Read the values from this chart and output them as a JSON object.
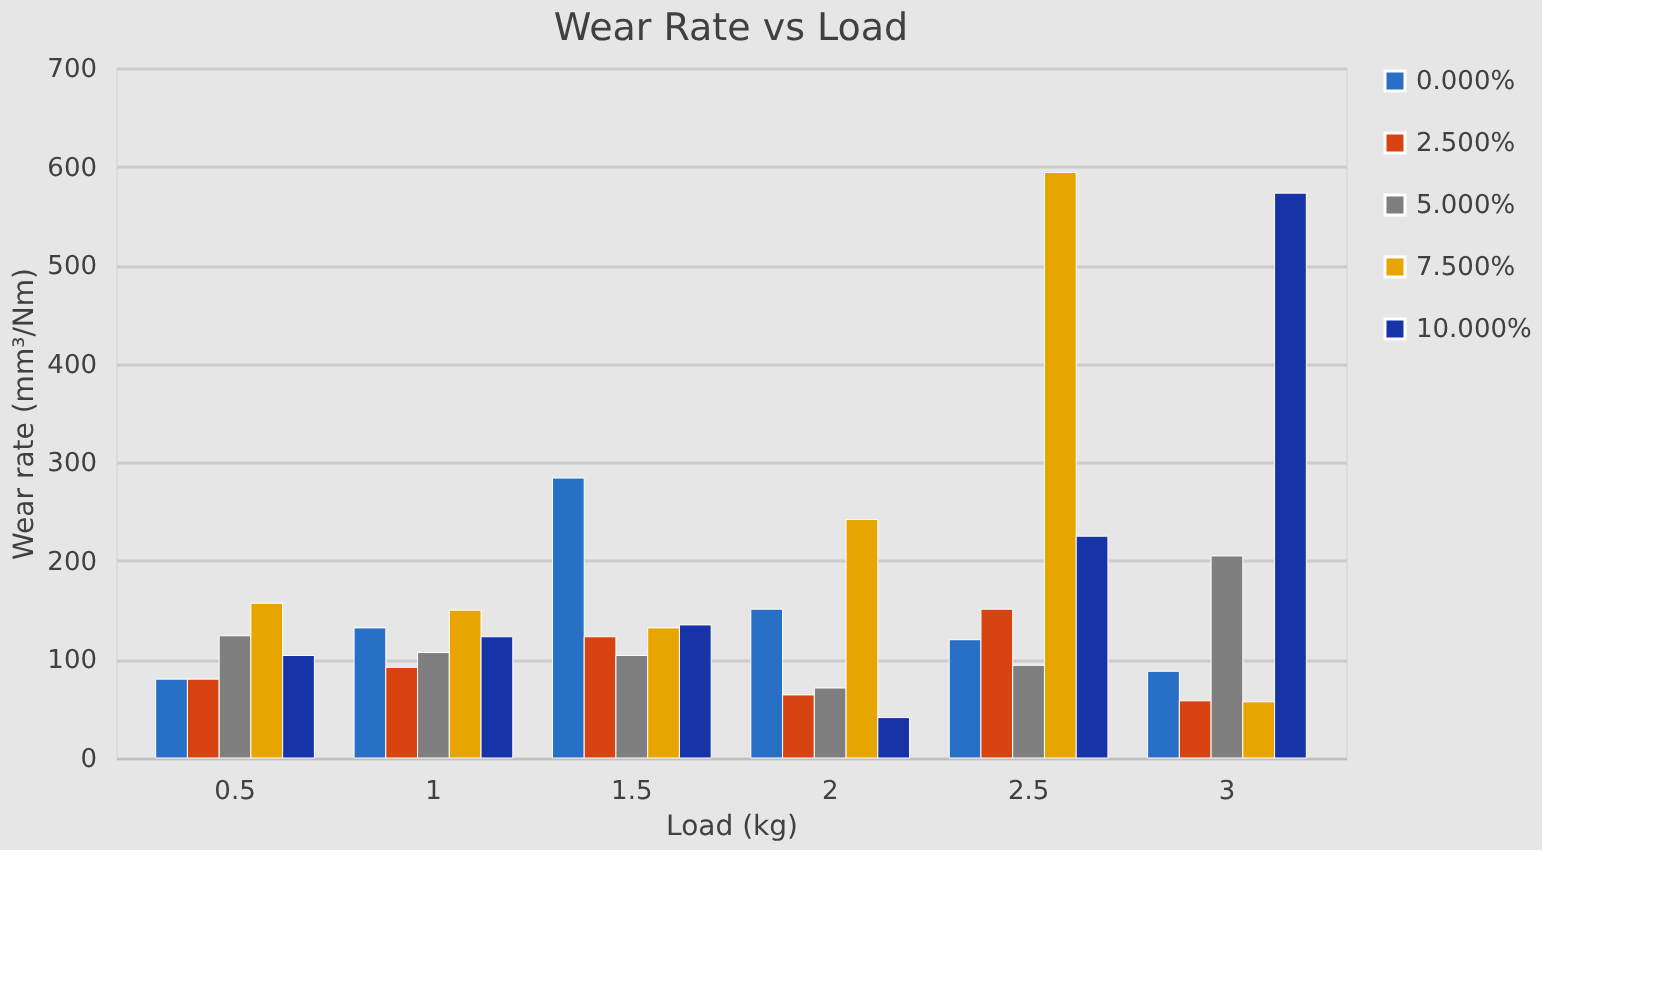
{
  "chart_data": {
    "type": "bar",
    "title": "Wear Rate vs Load",
    "xlabel": "Load (kg)",
    "ylabel": "Wear rate (mm³/Nm)",
    "categories": [
      "0.5",
      "1",
      "1.5",
      "2",
      "2.5",
      "3"
    ],
    "series": [
      {
        "name": "0.000%",
        "color": "#2870c5",
        "values": [
          80,
          132,
          284,
          151,
          120,
          88
        ]
      },
      {
        "name": "2.500%",
        "color": "#d84312",
        "values": [
          80,
          92,
          123,
          64,
          151,
          58
        ]
      },
      {
        "name": "5.000%",
        "color": "#7f7f7f",
        "values": [
          124,
          107,
          104,
          71,
          94,
          205
        ]
      },
      {
        "name": "7.500%",
        "color": "#e6a500",
        "values": [
          157,
          150,
          132,
          242,
          594,
          57
        ]
      },
      {
        "name": "10.000%",
        "color": "#1733a8",
        "values": [
          104,
          123,
          135,
          41,
          225,
          573
        ]
      }
    ],
    "ylim": [
      0,
      700
    ],
    "yticks": [
      0,
      100,
      200,
      300,
      400,
      500,
      600,
      700
    ],
    "grid": "y",
    "legend": "right"
  }
}
